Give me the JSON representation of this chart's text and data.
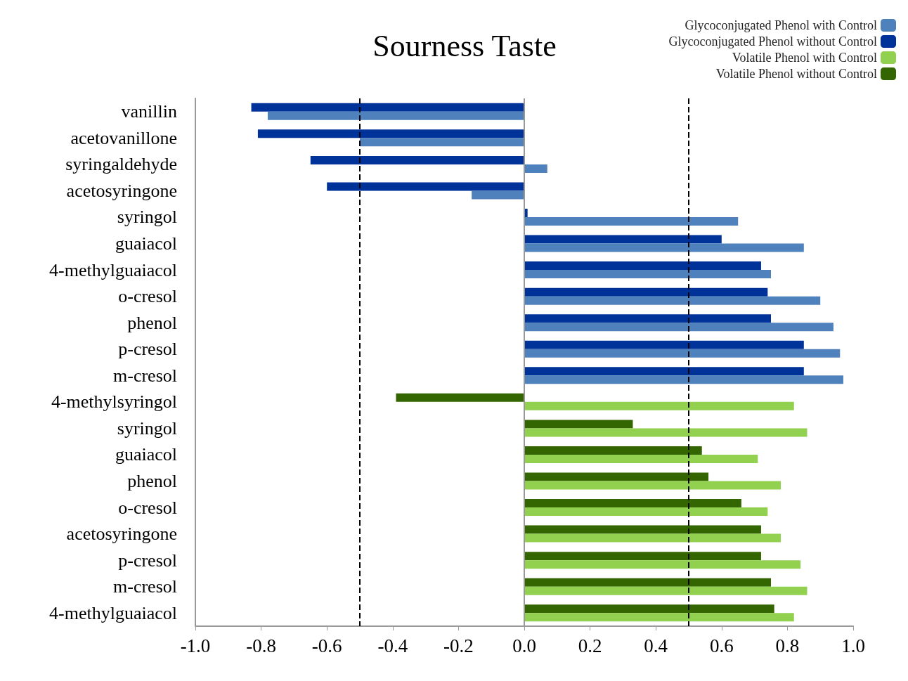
{
  "chart_data": {
    "type": "bar",
    "orientation": "horizontal",
    "title": "Sourness Taste",
    "categories": [
      "vanillin",
      "acetovanillone",
      "syringaldehyde",
      "acetosyringone",
      "syringol",
      "guaiacol",
      "4-methylguaiacol",
      "o-cresol",
      "phenol",
      "p-cresol",
      "m-cresol",
      "4-methylsyringol",
      "syringol",
      "guaiacol",
      "phenol",
      "o-cresol",
      "acetosyringone",
      "p-cresol",
      "m-cresol",
      "4-methylguaiacol"
    ],
    "series": [
      {
        "name": "Glycoconjugated Phenol with Control",
        "color": "#4f81bd",
        "values": [
          -0.78,
          -0.5,
          0.07,
          -0.16,
          0.65,
          0.85,
          0.75,
          0.9,
          0.94,
          0.96,
          0.97,
          null,
          null,
          null,
          null,
          null,
          null,
          null,
          null,
          null
        ]
      },
      {
        "name": "Glycoconjugated Phenol without Control",
        "color": "#00339a",
        "values": [
          -0.83,
          -0.81,
          -0.65,
          -0.6,
          0.01,
          0.6,
          0.72,
          0.74,
          0.75,
          0.85,
          0.85,
          null,
          null,
          null,
          null,
          null,
          null,
          null,
          null,
          null
        ]
      },
      {
        "name": "Volatile Phenol with Control",
        "color": "#92d050",
        "values": [
          null,
          null,
          null,
          null,
          null,
          null,
          null,
          null,
          null,
          null,
          null,
          0.82,
          0.86,
          0.71,
          0.78,
          0.74,
          0.78,
          0.84,
          0.86,
          0.82
        ]
      },
      {
        "name": "Volatile Phenol without Control",
        "color": "#336600",
        "values": [
          null,
          null,
          null,
          null,
          null,
          null,
          null,
          null,
          null,
          null,
          null,
          -0.39,
          0.33,
          0.54,
          0.56,
          0.66,
          0.72,
          0.72,
          0.75,
          0.76
        ]
      }
    ],
    "xlim": [
      -1.0,
      1.0
    ],
    "xticks": [
      {
        "value": -1,
        "label": "-1.0"
      },
      {
        "value": -0.8,
        "label": "-0.8"
      },
      {
        "value": -0.6,
        "label": "-0.6"
      },
      {
        "value": -0.4,
        "label": "-0.4"
      },
      {
        "value": -0.2,
        "label": "-0.2"
      },
      {
        "value": 0,
        "label": "0.0"
      },
      {
        "value": 0.2,
        "label": "0.2"
      },
      {
        "value": 0.4,
        "label": "0.4"
      },
      {
        "value": 0.6,
        "label": "0.6"
      },
      {
        "value": 0.8,
        "label": "0.8"
      },
      {
        "value": 1,
        "label": "1.0"
      }
    ],
    "ref_lines": [
      {
        "axis": "x",
        "value": -0.5,
        "line_style": "dashed",
        "color": "#000000"
      },
      {
        "axis": "x",
        "value": 0.5,
        "line_style": "dashed",
        "color": "#000000"
      },
      {
        "axis": "x",
        "value": 0,
        "line_style": "solid",
        "color": "#999999"
      }
    ],
    "grid": false,
    "legend": "top right"
  }
}
